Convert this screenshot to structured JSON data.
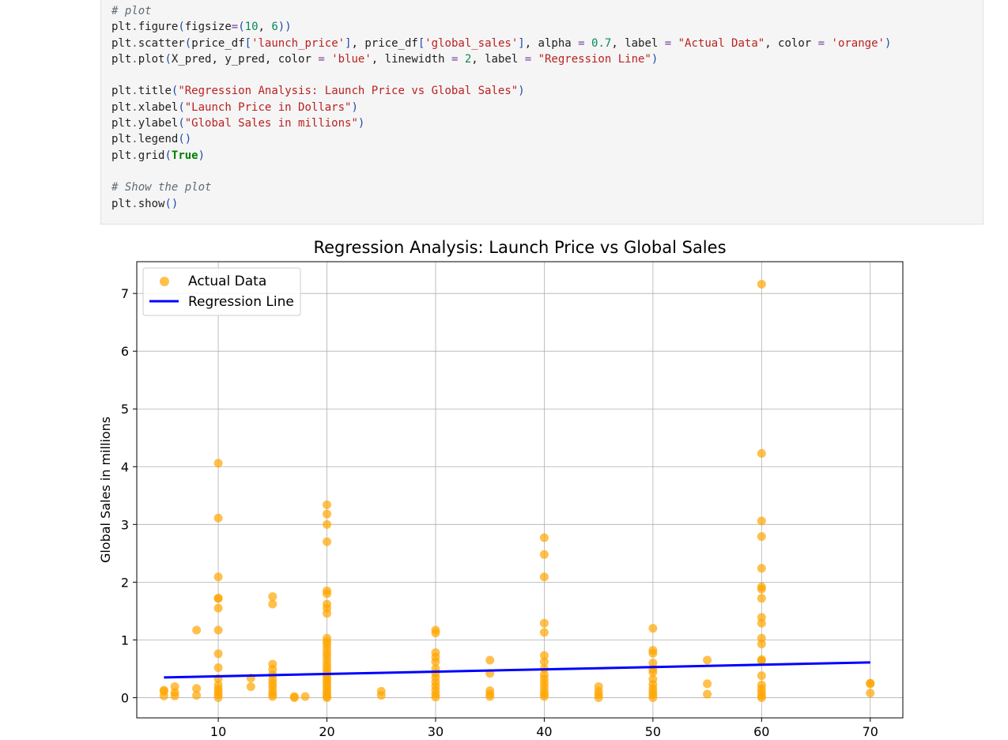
{
  "code_cell": {
    "lines": [
      [
        [
          "c-com",
          "# plot"
        ]
      ],
      [
        [
          "c-txt",
          "plt"
        ],
        [
          "c-op",
          "."
        ],
        [
          "c-txt",
          "figure"
        ],
        [
          "c-par",
          "("
        ],
        [
          "c-txt",
          "figsize"
        ],
        [
          "c-op",
          "="
        ],
        [
          "c-par",
          "("
        ],
        [
          "c-num",
          "10"
        ],
        [
          "c-txt",
          ", "
        ],
        [
          "c-num",
          "6"
        ],
        [
          "c-par",
          "))"
        ]
      ],
      [
        [
          "c-txt",
          "plt"
        ],
        [
          "c-op",
          "."
        ],
        [
          "c-txt",
          "scatter"
        ],
        [
          "c-par",
          "("
        ],
        [
          "c-txt",
          "price_df"
        ],
        [
          "c-par",
          "["
        ],
        [
          "c-str",
          "'launch_price'"
        ],
        [
          "c-par",
          "]"
        ],
        [
          "c-txt",
          ", price_df"
        ],
        [
          "c-par",
          "["
        ],
        [
          "c-str",
          "'global_sales'"
        ],
        [
          "c-par",
          "]"
        ],
        [
          "c-txt",
          ", alpha "
        ],
        [
          "c-op",
          "="
        ],
        [
          "c-txt",
          " "
        ],
        [
          "c-num",
          "0.7"
        ],
        [
          "c-txt",
          ", label "
        ],
        [
          "c-op",
          "="
        ],
        [
          "c-txt",
          " "
        ],
        [
          "c-str",
          "\"Actual Data\""
        ],
        [
          "c-txt",
          ", color "
        ],
        [
          "c-op",
          "="
        ],
        [
          "c-txt",
          " "
        ],
        [
          "c-str",
          "'orange'"
        ],
        [
          "c-par",
          ")"
        ]
      ],
      [
        [
          "c-txt",
          "plt"
        ],
        [
          "c-op",
          "."
        ],
        [
          "c-txt",
          "plot"
        ],
        [
          "c-par",
          "("
        ],
        [
          "c-txt",
          "X_pred, y_pred, color "
        ],
        [
          "c-op",
          "="
        ],
        [
          "c-txt",
          " "
        ],
        [
          "c-str",
          "'blue'"
        ],
        [
          "c-txt",
          ", linewidth "
        ],
        [
          "c-op",
          "="
        ],
        [
          "c-txt",
          " "
        ],
        [
          "c-num",
          "2"
        ],
        [
          "c-txt",
          ", label "
        ],
        [
          "c-op",
          "="
        ],
        [
          "c-txt",
          " "
        ],
        [
          "c-str",
          "\"Regression Line\""
        ],
        [
          "c-par",
          ")"
        ]
      ],
      [],
      [
        [
          "c-txt",
          "plt"
        ],
        [
          "c-op",
          "."
        ],
        [
          "c-txt",
          "title"
        ],
        [
          "c-par",
          "("
        ],
        [
          "c-str",
          "\"Regression Analysis: Launch Price vs Global Sales\""
        ],
        [
          "c-par",
          ")"
        ]
      ],
      [
        [
          "c-txt",
          "plt"
        ],
        [
          "c-op",
          "."
        ],
        [
          "c-txt",
          "xlabel"
        ],
        [
          "c-par",
          "("
        ],
        [
          "c-str",
          "\"Launch Price in Dollars\""
        ],
        [
          "c-par",
          ")"
        ]
      ],
      [
        [
          "c-txt",
          "plt"
        ],
        [
          "c-op",
          "."
        ],
        [
          "c-txt",
          "ylabel"
        ],
        [
          "c-par",
          "("
        ],
        [
          "c-str",
          "\"Global Sales in millions\""
        ],
        [
          "c-par",
          ")"
        ]
      ],
      [
        [
          "c-txt",
          "plt"
        ],
        [
          "c-op",
          "."
        ],
        [
          "c-txt",
          "legend"
        ],
        [
          "c-par",
          "()"
        ]
      ],
      [
        [
          "c-txt",
          "plt"
        ],
        [
          "c-op",
          "."
        ],
        [
          "c-txt",
          "grid"
        ],
        [
          "c-par",
          "("
        ],
        [
          "c-kw",
          "True"
        ],
        [
          "c-par",
          ")"
        ]
      ],
      [],
      [
        [
          "c-com",
          "# Show the plot"
        ]
      ],
      [
        [
          "c-txt",
          "plt"
        ],
        [
          "c-op",
          "."
        ],
        [
          "c-txt",
          "show"
        ],
        [
          "c-par",
          "()"
        ]
      ]
    ]
  },
  "chart_data": {
    "type": "scatter",
    "title": "Regression Analysis: Launch Price vs Global Sales",
    "xlabel": "",
    "ylabel": "Global Sales in millions",
    "xlim": [
      2.5,
      73
    ],
    "ylim": [
      -0.35,
      7.55
    ],
    "xticks": [
      10,
      20,
      30,
      40,
      50,
      60,
      70
    ],
    "yticks": [
      0,
      1,
      2,
      3,
      4,
      5,
      6,
      7
    ],
    "grid": true,
    "legend_position": "top-left",
    "colors": {
      "scatter": "#ffa500",
      "line": "#0000ff"
    },
    "series": [
      {
        "name": "Actual Data",
        "kind": "scatter",
        "alpha": 0.7,
        "points": [
          [
            5,
            0.13
          ],
          [
            5,
            0.11
          ],
          [
            5,
            0.03
          ],
          [
            6,
            0.19
          ],
          [
            6,
            0.09
          ],
          [
            6,
            0.03
          ],
          [
            8,
            0.16
          ],
          [
            8,
            0.04
          ],
          [
            8,
            1.17
          ],
          [
            10,
            4.06
          ],
          [
            10,
            3.11
          ],
          [
            10,
            2.09
          ],
          [
            10,
            1.72
          ],
          [
            10,
            1.72
          ],
          [
            10,
            1.55
          ],
          [
            10,
            1.17
          ],
          [
            10,
            0.76
          ],
          [
            10,
            0.52
          ],
          [
            10,
            0.33
          ],
          [
            10,
            0.22
          ],
          [
            10,
            0.15
          ],
          [
            10,
            0.1
          ],
          [
            10,
            0.05
          ],
          [
            10,
            0.0
          ],
          [
            13,
            0.34
          ],
          [
            13,
            0.19
          ],
          [
            15,
            1.75
          ],
          [
            15,
            1.62
          ],
          [
            15,
            0.58
          ],
          [
            15,
            0.49
          ],
          [
            15,
            0.4
          ],
          [
            15,
            0.32
          ],
          [
            15,
            0.25
          ],
          [
            15,
            0.19
          ],
          [
            15,
            0.12
          ],
          [
            15,
            0.06
          ],
          [
            15,
            0.02
          ],
          [
            17,
            0.02
          ],
          [
            17,
            0.0
          ],
          [
            18,
            0.02
          ],
          [
            20,
            3.34
          ],
          [
            20,
            3.18
          ],
          [
            20,
            3.0
          ],
          [
            20,
            2.7
          ],
          [
            20,
            1.85
          ],
          [
            20,
            1.8
          ],
          [
            20,
            1.62
          ],
          [
            20,
            1.55
          ],
          [
            20,
            1.46
          ],
          [
            20,
            1.03
          ],
          [
            20,
            0.97
          ],
          [
            20,
            0.92
          ],
          [
            20,
            0.85
          ],
          [
            20,
            0.78
          ],
          [
            20,
            0.72
          ],
          [
            20,
            0.65
          ],
          [
            20,
            0.58
          ],
          [
            20,
            0.52
          ],
          [
            20,
            0.46
          ],
          [
            20,
            0.41
          ],
          [
            20,
            0.36
          ],
          [
            20,
            0.31
          ],
          [
            20,
            0.26
          ],
          [
            20,
            0.21
          ],
          [
            20,
            0.16
          ],
          [
            20,
            0.11
          ],
          [
            20,
            0.06
          ],
          [
            20,
            0.02
          ],
          [
            20,
            0.0
          ],
          [
            25,
            0.11
          ],
          [
            25,
            0.04
          ],
          [
            30,
            1.17
          ],
          [
            30,
            1.12
          ],
          [
            30,
            0.78
          ],
          [
            30,
            0.7
          ],
          [
            30,
            0.62
          ],
          [
            30,
            0.5
          ],
          [
            30,
            0.42
          ],
          [
            30,
            0.35
          ],
          [
            30,
            0.27
          ],
          [
            30,
            0.2
          ],
          [
            30,
            0.13
          ],
          [
            30,
            0.06
          ],
          [
            30,
            0.01
          ],
          [
            35,
            0.65
          ],
          [
            35,
            0.42
          ],
          [
            35,
            0.12
          ],
          [
            35,
            0.06
          ],
          [
            35,
            0.02
          ],
          [
            40,
            2.77
          ],
          [
            40,
            2.48
          ],
          [
            40,
            2.09
          ],
          [
            40,
            1.29
          ],
          [
            40,
            1.13
          ],
          [
            40,
            0.73
          ],
          [
            40,
            0.62
          ],
          [
            40,
            0.5
          ],
          [
            40,
            0.4
          ],
          [
            40,
            0.33
          ],
          [
            40,
            0.26
          ],
          [
            40,
            0.19
          ],
          [
            40,
            0.12
          ],
          [
            40,
            0.06
          ],
          [
            40,
            0.02
          ],
          [
            45,
            0.19
          ],
          [
            45,
            0.11
          ],
          [
            45,
            0.05
          ],
          [
            45,
            0.0
          ],
          [
            50,
            1.2
          ],
          [
            50,
            0.82
          ],
          [
            50,
            0.77
          ],
          [
            50,
            0.6
          ],
          [
            50,
            0.49
          ],
          [
            50,
            0.44
          ],
          [
            50,
            0.32
          ],
          [
            50,
            0.23
          ],
          [
            50,
            0.16
          ],
          [
            50,
            0.1
          ],
          [
            50,
            0.05
          ],
          [
            50,
            0.0
          ],
          [
            55,
            0.65
          ],
          [
            55,
            0.24
          ],
          [
            55,
            0.06
          ],
          [
            60,
            7.16
          ],
          [
            60,
            4.23
          ],
          [
            60,
            3.06
          ],
          [
            60,
            2.79
          ],
          [
            60,
            2.24
          ],
          [
            60,
            1.92
          ],
          [
            60,
            1.88
          ],
          [
            60,
            1.72
          ],
          [
            60,
            1.39
          ],
          [
            60,
            1.29
          ],
          [
            60,
            1.03
          ],
          [
            60,
            0.93
          ],
          [
            60,
            0.66
          ],
          [
            60,
            0.64
          ],
          [
            60,
            0.38
          ],
          [
            60,
            0.22
          ],
          [
            60,
            0.15
          ],
          [
            60,
            0.09
          ],
          [
            60,
            0.03
          ],
          [
            60,
            0.0
          ],
          [
            70,
            0.25
          ],
          [
            70,
            0.24
          ],
          [
            70,
            0.08
          ]
        ]
      },
      {
        "name": "Regression Line",
        "kind": "line",
        "linewidth": 2,
        "x": [
          5,
          70
        ],
        "y": [
          0.35,
          0.61
        ]
      }
    ]
  }
}
